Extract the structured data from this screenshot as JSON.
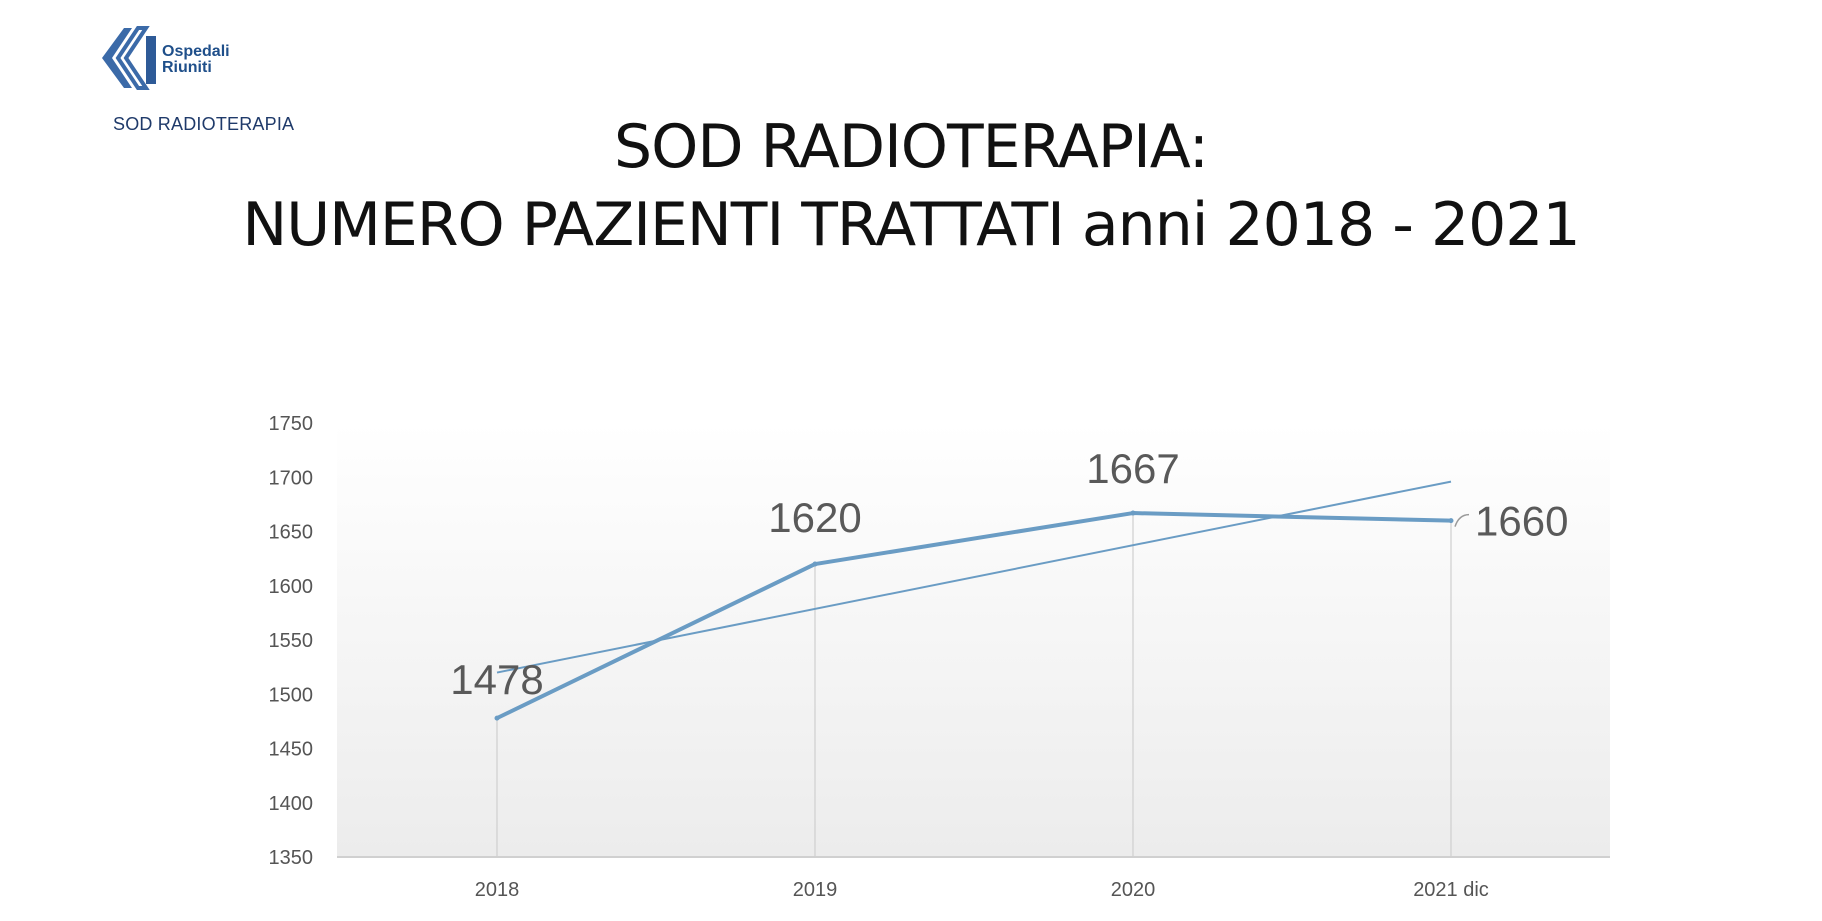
{
  "logo": {
    "name_line1": "Ospedali",
    "name_line2": "Riuniti",
    "subtitle": "SOD RADIOTERAPIA"
  },
  "title": {
    "line1": "SOD RADIOTERAPIA:",
    "line2": "NUMERO PAZIENTI TRATTATI anni 2018 - 2021"
  },
  "colors": {
    "series": "#6a9cc4",
    "trend": "#6a9cc4",
    "highlight_label": "#d9101b",
    "axis": "#d0d0d0"
  },
  "chart_data": {
    "type": "line",
    "title": "",
    "xlabel": "",
    "ylabel": "",
    "categories": [
      "2018",
      "2019",
      "2020",
      "2021 dic"
    ],
    "series": [
      {
        "values": [
          1478,
          1620,
          1667,
          1660
        ],
        "data_labels": [
          "1478",
          "1620",
          "1667",
          "1660"
        ]
      }
    ],
    "trendline": {
      "type": "linear",
      "start": 1520,
      "end": 1696
    },
    "highlighted_point_index": 3,
    "ylim": [
      1350,
      1750
    ],
    "yticks": [
      "1350",
      "1400",
      "1450",
      "1500",
      "1550",
      "1600",
      "1650",
      "1700",
      "1750"
    ],
    "grid": false,
    "legend": "none"
  }
}
